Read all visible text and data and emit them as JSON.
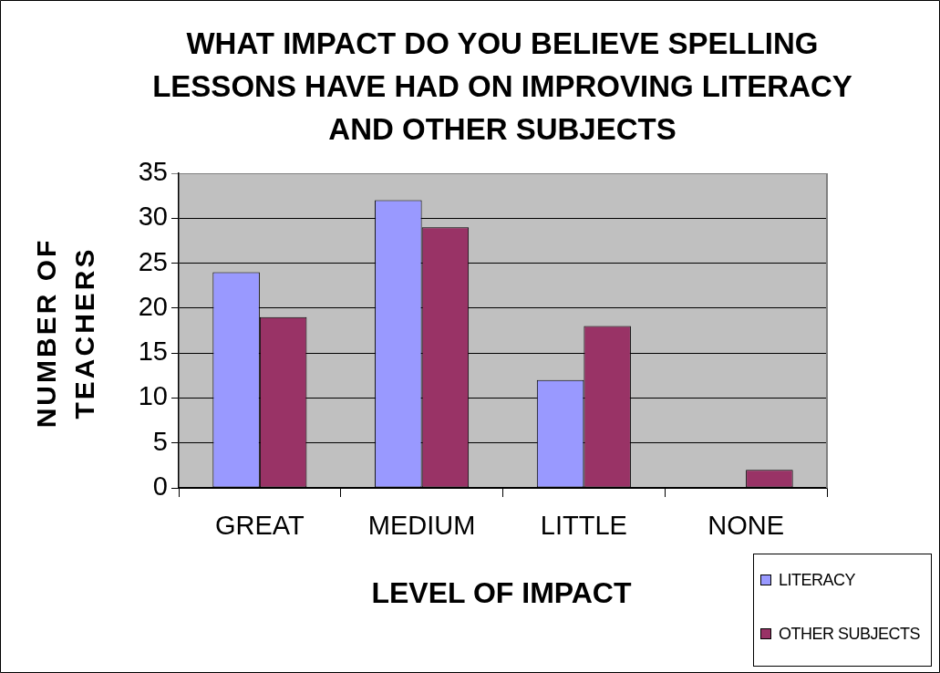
{
  "chart_data": {
    "type": "bar",
    "title": "WHAT IMPACT DO YOU BELIEVE SPELLING LESSONS HAVE HAD ON IMPROVING LITERACY AND OTHER SUBJECTS",
    "xlabel": "LEVEL OF IMPACT",
    "ylabel": "NUMBER OF TEACHERS",
    "categories": [
      "GREAT",
      "MEDIUM",
      "LITTLE",
      "NONE"
    ],
    "series": [
      {
        "name": "LITERACY",
        "color": "#9999ff",
        "values": [
          24,
          32,
          12,
          0
        ]
      },
      {
        "name": "OTHER SUBJECTS",
        "color": "#993366",
        "values": [
          19,
          29,
          18,
          2
        ]
      }
    ],
    "ylim": [
      0,
      35
    ],
    "yticks": [
      0,
      5,
      10,
      15,
      20,
      25,
      30,
      35
    ],
    "grid": "y",
    "legend": "bottom right"
  }
}
